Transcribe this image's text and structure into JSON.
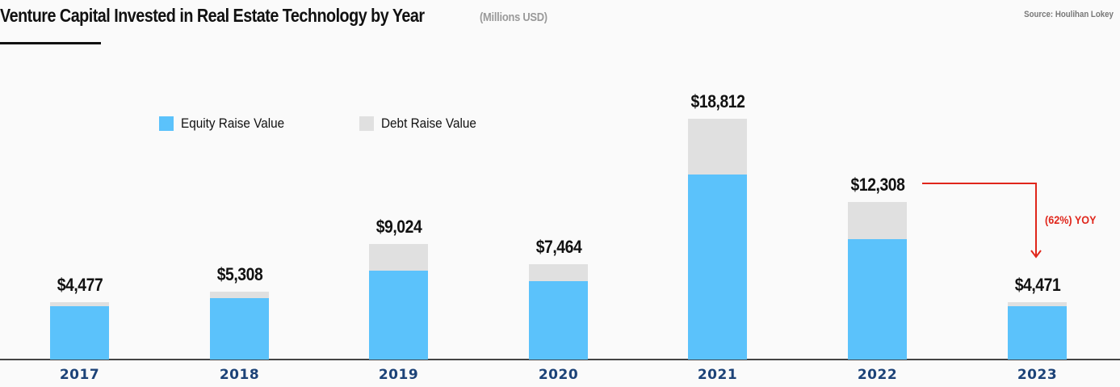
{
  "header": {
    "title": "Venture Capital Invested in Real Estate Technology by Year",
    "subtitle": "(Millions USD)",
    "source": "Source: Houlihan Lokey"
  },
  "legend": [
    {
      "label": "Equity Raise Value",
      "color": "#5bc2fb"
    },
    {
      "label": "Debt Raise Value",
      "color": "#e0e0e0"
    }
  ],
  "colors": {
    "equity": "#5bc2fb",
    "debt": "#e0e0e0",
    "year_label": "#1d4378",
    "annotation": "#e0261b"
  },
  "annotation": {
    "text": "(62%) YOY",
    "from": "2022",
    "to": "2023"
  },
  "chart_data": {
    "type": "bar",
    "stacked": true,
    "title": "Venture Capital Invested in Real Estate Technology by Year",
    "subtitle": "(Millions USD)",
    "source": "Source: Houlihan Lokey",
    "xlabel": "",
    "ylabel": "Millions USD",
    "categories": [
      "2017",
      "2018",
      "2019",
      "2020",
      "2021",
      "2022",
      "2023"
    ],
    "totals": [
      4477,
      5308,
      9024,
      7464,
      18812,
      12308,
      4471
    ],
    "total_labels": [
      "$4,477",
      "$5,308",
      "$9,024",
      "$7,464",
      "$18,812",
      "$12,308",
      "$4,471"
    ],
    "series": [
      {
        "name": "Equity Raise Value",
        "values": [
          4170,
          4800,
          6940,
          6120,
          14460,
          9410,
          4170
        ]
      },
      {
        "name": "Debt Raise Value",
        "values": [
          307,
          508,
          2084,
          1344,
          4352,
          2898,
          301
        ]
      }
    ],
    "ylim": [
      0,
      19000
    ],
    "grid": false,
    "legend_position": "top-left",
    "annotations": [
      {
        "text": "(62%) YOY",
        "from": "2022",
        "to": "2023",
        "type": "arrow"
      }
    ]
  }
}
